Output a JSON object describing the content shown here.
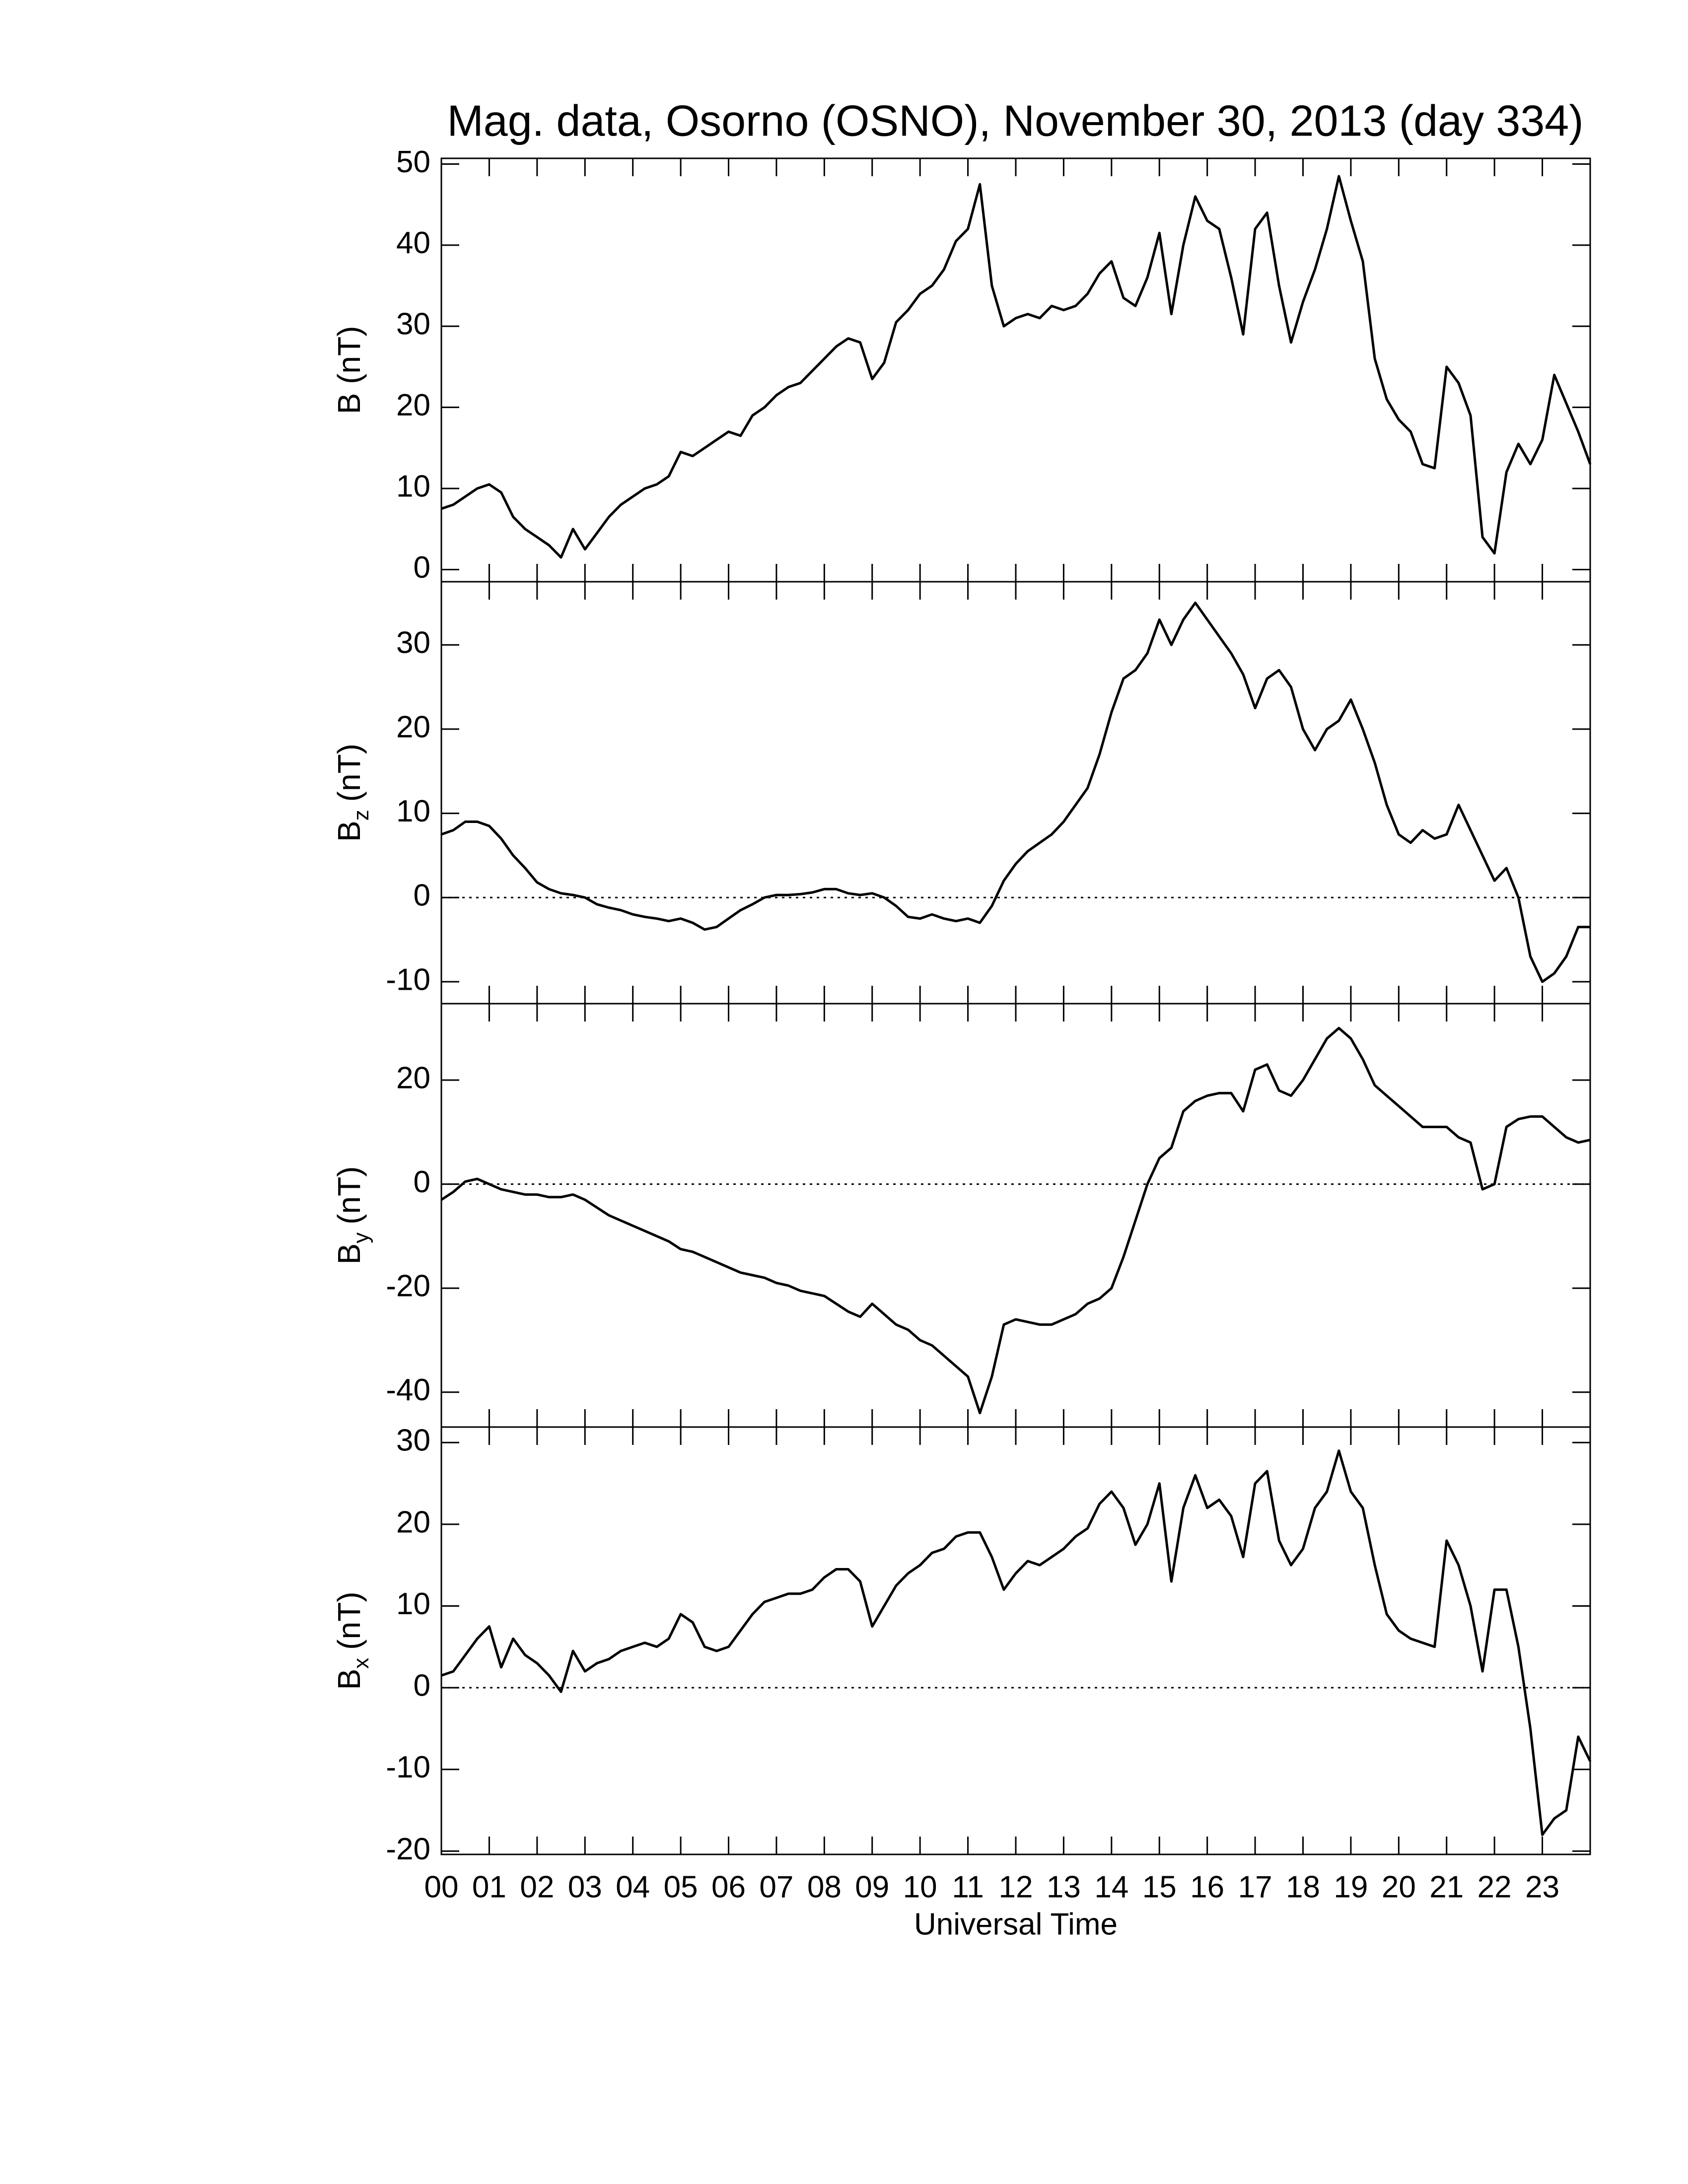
{
  "chart_data": [
    {
      "type": "line",
      "title": "Mag. data, Osorno (OSNO), November 30, 2013 (day 334)",
      "ylabel": "B (nT)",
      "x": [
        0,
        0.25,
        0.5,
        0.75,
        1,
        1.25,
        1.5,
        1.75,
        2,
        2.25,
        2.5,
        2.75,
        3,
        3.25,
        3.5,
        3.75,
        4,
        4.25,
        4.5,
        4.75,
        5,
        5.25,
        5.5,
        5.75,
        6,
        6.25,
        6.5,
        6.75,
        7,
        7.25,
        7.5,
        7.75,
        8,
        8.25,
        8.5,
        8.75,
        9,
        9.25,
        9.5,
        9.75,
        10,
        10.25,
        10.5,
        10.75,
        11,
        11.25,
        11.5,
        11.75,
        12,
        12.25,
        12.5,
        12.75,
        13,
        13.25,
        13.5,
        13.75,
        14,
        14.25,
        14.5,
        14.75,
        15,
        15.25,
        15.5,
        15.75,
        16,
        16.25,
        16.5,
        16.75,
        17,
        17.25,
        17.5,
        17.75,
        18,
        18.25,
        18.5,
        18.75,
        19,
        19.25,
        19.5,
        19.75,
        20,
        20.25,
        20.5,
        20.75,
        21,
        21.25,
        21.5,
        21.75,
        22,
        22.25,
        22.5,
        22.75,
        23,
        23.25,
        23.5,
        23.75,
        24
      ],
      "series": [
        {
          "color": "#000000",
          "values": [
            7.5,
            8,
            9,
            10,
            10.5,
            9.5,
            6.5,
            5,
            4,
            3,
            1.5,
            5,
            2.5,
            4.5,
            6.5,
            8,
            9,
            10,
            10.5,
            11.5,
            14.5,
            14,
            15,
            16,
            17,
            16.5,
            19,
            20,
            21.5,
            22.5,
            23,
            24.5,
            26,
            27.5,
            28.5,
            28,
            23.5,
            25.5,
            30.5,
            32,
            34,
            35,
            37,
            40.5,
            42,
            47.5,
            35,
            30,
            31,
            31.5,
            31,
            32.5,
            32,
            32.5,
            34,
            36.5,
            38,
            33.5,
            32.5,
            36,
            41.5,
            31.5,
            40,
            46,
            43,
            42,
            36,
            29,
            42,
            44,
            35,
            28,
            33,
            37,
            42,
            48.5,
            43,
            38,
            26,
            21,
            18.5,
            17,
            13,
            12.5,
            25,
            23,
            19,
            4,
            2,
            12,
            15.5,
            13,
            16,
            24,
            20.5,
            17,
            13
          ]
        }
      ],
      "xlim": [
        0,
        24
      ],
      "ylim": [
        -1.5,
        50.7
      ],
      "yticks": [
        0,
        10,
        20,
        30,
        40,
        50
      ],
      "zero_line": false
    },
    {
      "type": "line",
      "ylabel": "B",
      "ylabel_subscript": "z",
      "ylabel_unit": "(nT)",
      "x": [
        0,
        0.25,
        0.5,
        0.75,
        1,
        1.25,
        1.5,
        1.75,
        2,
        2.25,
        2.5,
        2.75,
        3,
        3.25,
        3.5,
        3.75,
        4,
        4.25,
        4.5,
        4.75,
        5,
        5.25,
        5.5,
        5.75,
        6,
        6.25,
        6.5,
        6.75,
        7,
        7.25,
        7.5,
        7.75,
        8,
        8.25,
        8.5,
        8.75,
        9,
        9.25,
        9.5,
        9.75,
        10,
        10.25,
        10.5,
        10.75,
        11,
        11.25,
        11.5,
        11.75,
        12,
        12.25,
        12.5,
        12.75,
        13,
        13.25,
        13.5,
        13.75,
        14,
        14.25,
        14.5,
        14.75,
        15,
        15.25,
        15.5,
        15.75,
        16,
        16.25,
        16.5,
        16.75,
        17,
        17.25,
        17.5,
        17.75,
        18,
        18.25,
        18.5,
        18.75,
        19,
        19.25,
        19.5,
        19.75,
        20,
        20.25,
        20.5,
        20.75,
        21,
        21.25,
        21.5,
        21.75,
        22,
        22.25,
        22.5,
        22.75,
        23,
        23.25,
        23.5,
        23.75,
        24
      ],
      "series": [
        {
          "color": "#000000",
          "values": [
            7.5,
            8,
            9,
            9,
            8.5,
            7,
            5,
            3.5,
            1.8,
            1,
            0.5,
            0.3,
            0,
            -0.8,
            -1.2,
            -1.5,
            -2,
            -2.3,
            -2.5,
            -2.8,
            -2.5,
            -3,
            -3.8,
            -3.5,
            -2.5,
            -1.5,
            -0.8,
            0,
            0.3,
            0.3,
            0.4,
            0.6,
            1,
            1,
            0.5,
            0.3,
            0.5,
            0,
            -1,
            -2.3,
            -2.5,
            -2,
            -2.5,
            -2.8,
            -2.5,
            -3,
            -1,
            2,
            4,
            5.5,
            6.5,
            7.5,
            9,
            11,
            13,
            17,
            22,
            26,
            27,
            29,
            33,
            30,
            33,
            35,
            33,
            31,
            29,
            26.5,
            22.5,
            26,
            27,
            25,
            20,
            17.5,
            20,
            21,
            23.5,
            20,
            16,
            11,
            7.5,
            6.5,
            8,
            7,
            7.5,
            11,
            8,
            5,
            2,
            3.5,
            0,
            -7,
            -10,
            -9,
            -7,
            -3.5,
            -3.5
          ]
        }
      ],
      "xlim": [
        0,
        24
      ],
      "ylim": [
        -12.6,
        37.5
      ],
      "yticks": [
        -10,
        0,
        10,
        20,
        30
      ],
      "zero_line": true
    },
    {
      "type": "line",
      "ylabel": "B",
      "ylabel_subscript": "y",
      "ylabel_unit": "(nT)",
      "x": [
        0,
        0.25,
        0.5,
        0.75,
        1,
        1.25,
        1.5,
        1.75,
        2,
        2.25,
        2.5,
        2.75,
        3,
        3.25,
        3.5,
        3.75,
        4,
        4.25,
        4.5,
        4.75,
        5,
        5.25,
        5.5,
        5.75,
        6,
        6.25,
        6.5,
        6.75,
        7,
        7.25,
        7.5,
        7.75,
        8,
        8.25,
        8.5,
        8.75,
        9,
        9.25,
        9.5,
        9.75,
        10,
        10.25,
        10.5,
        10.75,
        11,
        11.25,
        11.5,
        11.75,
        12,
        12.25,
        12.5,
        12.75,
        13,
        13.25,
        13.5,
        13.75,
        14,
        14.25,
        14.5,
        14.75,
        15,
        15.25,
        15.5,
        15.75,
        16,
        16.25,
        16.5,
        16.75,
        17,
        17.25,
        17.5,
        17.75,
        18,
        18.25,
        18.5,
        18.75,
        19,
        19.25,
        19.5,
        19.75,
        20,
        20.25,
        20.5,
        20.75,
        21,
        21.25,
        21.5,
        21.75,
        22,
        22.25,
        22.5,
        22.75,
        23,
        23.25,
        23.5,
        23.75,
        24
      ],
      "series": [
        {
          "color": "#000000",
          "values": [
            -3,
            -1.5,
            0.5,
            1,
            0,
            -1,
            -1.5,
            -2,
            -2,
            -2.5,
            -2.5,
            -2,
            -3,
            -4.5,
            -6,
            -7,
            -8,
            -9,
            -10,
            -11,
            -12.5,
            -13,
            -14,
            -15,
            -16,
            -17,
            -17.5,
            -18,
            -19,
            -19.5,
            -20.5,
            -21,
            -21.5,
            -23,
            -24.5,
            -25.5,
            -23,
            -25,
            -27,
            -28,
            -30,
            -31,
            -33,
            -35,
            -37,
            -44,
            -37,
            -27,
            -26,
            -26.5,
            -27,
            -27,
            -26,
            -25,
            -23,
            -22,
            -20,
            -14,
            -7,
            0,
            5,
            7,
            14,
            16,
            17,
            17.5,
            17.5,
            14,
            22,
            23,
            18,
            17,
            20,
            24,
            28,
            30,
            28,
            24,
            19,
            17,
            15,
            13,
            11,
            11,
            11,
            9,
            8,
            -1,
            0,
            11,
            12.5,
            13,
            13,
            11,
            9,
            8,
            8.5
          ]
        }
      ],
      "xlim": [
        0,
        24
      ],
      "ylim": [
        -46.7,
        34.7
      ],
      "yticks": [
        -40,
        -20,
        0,
        20
      ],
      "zero_line": true
    },
    {
      "type": "line",
      "ylabel": "B",
      "ylabel_subscript": "x",
      "ylabel_unit": "(nT)",
      "xlabel": "Universal Time",
      "x": [
        0,
        0.25,
        0.5,
        0.75,
        1,
        1.25,
        1.5,
        1.75,
        2,
        2.25,
        2.5,
        2.75,
        3,
        3.25,
        3.5,
        3.75,
        4,
        4.25,
        4.5,
        4.75,
        5,
        5.25,
        5.5,
        5.75,
        6,
        6.25,
        6.5,
        6.75,
        7,
        7.25,
        7.5,
        7.75,
        8,
        8.25,
        8.5,
        8.75,
        9,
        9.25,
        9.5,
        9.75,
        10,
        10.25,
        10.5,
        10.75,
        11,
        11.25,
        11.5,
        11.75,
        12,
        12.25,
        12.5,
        12.75,
        13,
        13.25,
        13.5,
        13.75,
        14,
        14.25,
        14.5,
        14.75,
        15,
        15.25,
        15.5,
        15.75,
        16,
        16.25,
        16.5,
        16.75,
        17,
        17.25,
        17.5,
        17.75,
        18,
        18.25,
        18.5,
        18.75,
        19,
        19.25,
        19.5,
        19.75,
        20,
        20.25,
        20.5,
        20.75,
        21,
        21.25,
        21.5,
        21.75,
        22,
        22.25,
        22.5,
        22.75,
        23,
        23.25,
        23.5,
        23.75,
        24
      ],
      "series": [
        {
          "color": "#000000",
          "values": [
            1.5,
            2,
            4,
            6,
            7.5,
            2.5,
            6,
            4,
            3,
            1.5,
            -0.5,
            4.5,
            2,
            3,
            3.5,
            4.5,
            5,
            5.5,
            5,
            6,
            9,
            8,
            5,
            4.5,
            5,
            7,
            9,
            10.5,
            11,
            11.5,
            11.5,
            12,
            13.5,
            14.5,
            14.5,
            13,
            7.5,
            10,
            12.5,
            14,
            15,
            16.5,
            17,
            18.5,
            19,
            19,
            16,
            12,
            14,
            15.5,
            15,
            16,
            17,
            18.5,
            19.5,
            22.5,
            24,
            22,
            17.5,
            20,
            25,
            13,
            22,
            26,
            22,
            23,
            21,
            16,
            25,
            26.5,
            18,
            15,
            17,
            22,
            24,
            29,
            24,
            22,
            15,
            9,
            7,
            6,
            5.5,
            5,
            18,
            15,
            10,
            2,
            12,
            12,
            5,
            -5,
            -18,
            -16,
            -15,
            -6,
            -9
          ]
        }
      ],
      "xlim": [
        0,
        24
      ],
      "ylim": [
        -20.4,
        31.9
      ],
      "yticks": [
        -20,
        -10,
        0,
        10,
        20,
        30
      ],
      "zero_line": true,
      "xticks": [
        {
          "value": 0,
          "label": "00"
        },
        {
          "value": 1,
          "label": "01"
        },
        {
          "value": 2,
          "label": "02"
        },
        {
          "value": 3,
          "label": "03"
        },
        {
          "value": 4,
          "label": "04"
        },
        {
          "value": 5,
          "label": "05"
        },
        {
          "value": 6,
          "label": "06"
        },
        {
          "value": 7,
          "label": "07"
        },
        {
          "value": 8,
          "label": "08"
        },
        {
          "value": 9,
          "label": "09"
        },
        10,
        11,
        12,
        13,
        14,
        15,
        16,
        17,
        18,
        19,
        20,
        21,
        22,
        23
      ]
    }
  ]
}
